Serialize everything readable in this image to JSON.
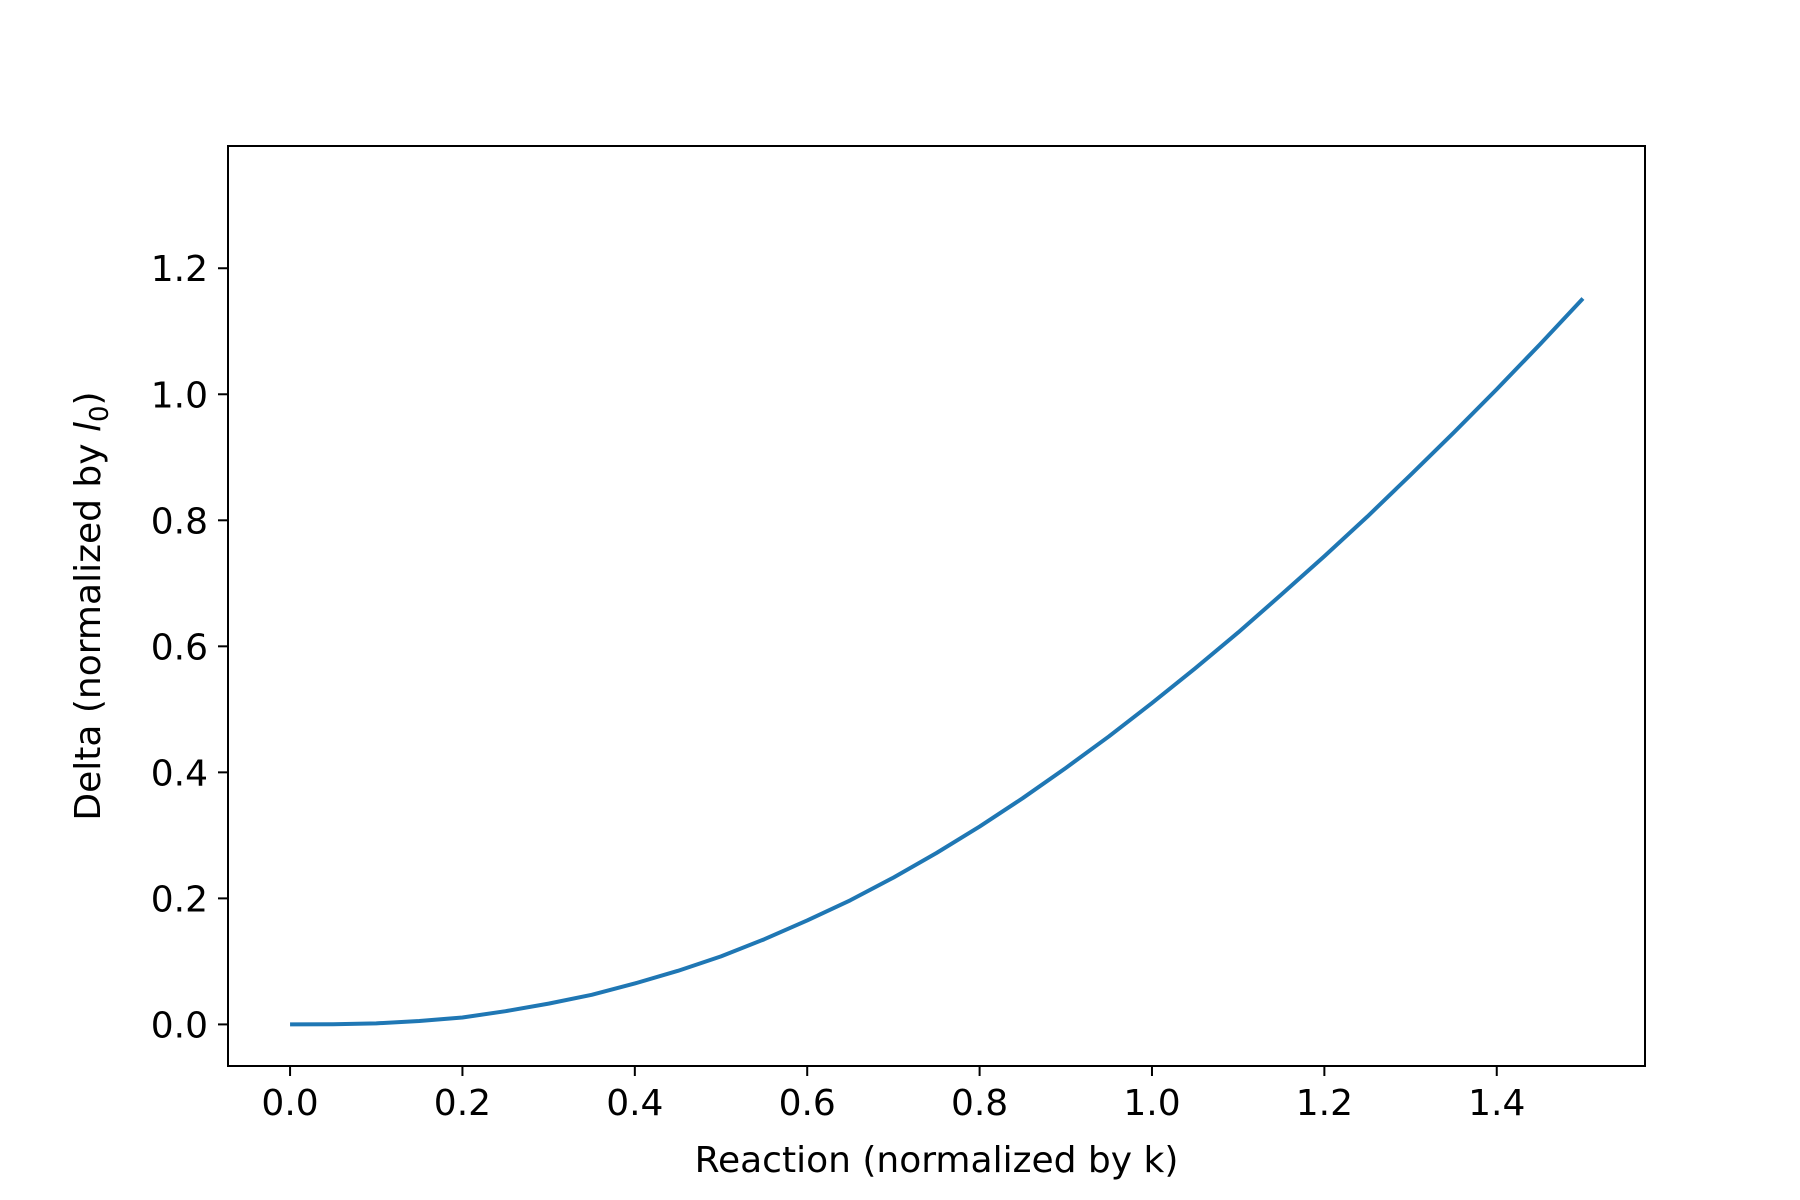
{
  "chart_data": {
    "type": "line",
    "title": "",
    "xlabel": "Reaction (normalized by k)",
    "ylabel_prefix": "Delta (normalized by ",
    "ylabel_var": "l",
    "ylabel_sub": "0",
    "ylabel_suffix": ")",
    "xlim": [
      -0.072,
      1.572
    ],
    "ylim": [
      -0.066,
      1.394
    ],
    "xticks": [
      0.0,
      0.2,
      0.4,
      0.6,
      0.8,
      1.0,
      1.2,
      1.4
    ],
    "xtick_labels": [
      "0.0",
      "0.2",
      "0.4",
      "0.6",
      "0.8",
      "1.0",
      "1.2",
      "1.4"
    ],
    "yticks": [
      0.0,
      0.2,
      0.4,
      0.6,
      0.8,
      1.0,
      1.2
    ],
    "ytick_labels": [
      "0.0",
      "0.2",
      "0.4",
      "0.6",
      "0.8",
      "1.0",
      "1.2"
    ],
    "grid": false,
    "series": [
      {
        "color": "#1f77b4",
        "x": [
          0.0,
          0.05,
          0.1,
          0.15,
          0.2,
          0.25,
          0.3,
          0.35,
          0.4,
          0.45,
          0.5,
          0.55,
          0.6,
          0.65,
          0.7,
          0.75,
          0.8,
          0.85,
          0.9,
          0.95,
          1.0,
          1.05,
          1.1,
          1.15,
          1.2,
          1.25,
          1.3,
          1.35,
          1.4,
          1.45,
          1.5
        ],
        "y": [
          0.0,
          0.0002,
          0.0017,
          0.0054,
          0.011,
          0.021,
          0.033,
          0.047,
          0.065,
          0.085,
          0.108,
          0.135,
          0.165,
          0.197,
          0.233,
          0.272,
          0.314,
          0.359,
          0.407,
          0.457,
          0.51,
          0.565,
          0.622,
          0.682,
          0.743,
          0.806,
          0.872,
          0.939,
          1.008,
          1.079,
          1.152
        ]
      }
    ]
  }
}
